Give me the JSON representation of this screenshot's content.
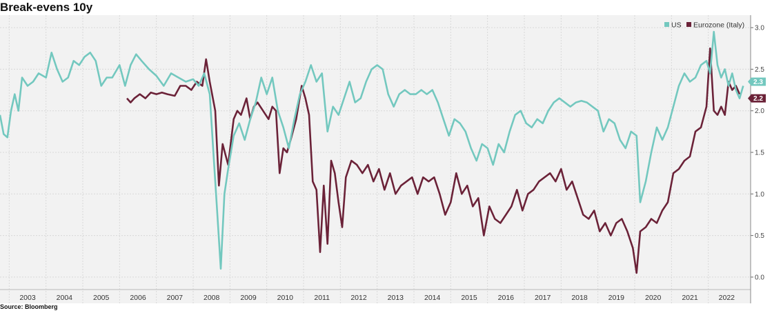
{
  "header": {
    "title": "Break-evens 10y"
  },
  "footer": {
    "source": "Source: Bloomberg"
  },
  "colors": {
    "us": "#73C8BF",
    "italy": "#6B2238",
    "plot_bg": "#F2F2F2",
    "grid": "#D8D8D8"
  },
  "chart_data": {
    "type": "line",
    "title": "Break-evens 10y",
    "xlabel": "",
    "ylabel": "",
    "ylim": [
      -0.15,
      3.15
    ],
    "xlim": [
      2002.75,
      2023.15
    ],
    "yticks": [
      0.0,
      0.5,
      1.0,
      1.5,
      2.0,
      2.5,
      3.0
    ],
    "ytick_labels": [
      "0.0",
      "0.5",
      "1.0",
      "1.5",
      "2.0",
      "2.5",
      "3.0"
    ],
    "xtick_labels": [
      "2003",
      "2004",
      "2005",
      "2006",
      "2007",
      "2008",
      "2009",
      "2010",
      "2011",
      "2012",
      "2013",
      "2014",
      "2015",
      "2016",
      "2017",
      "2018",
      "2019",
      "2020",
      "2021",
      "2022"
    ],
    "grid": true,
    "legend": "top-right",
    "end_labels": [
      "2.3",
      "2.2"
    ],
    "series": [
      {
        "name": "US",
        "color": "#73C8BF",
        "last_value_label": "2.3",
        "x": [
          2002.75,
          2002.85,
          2002.95,
          2003.05,
          2003.15,
          2003.25,
          2003.35,
          2003.5,
          2003.65,
          2003.8,
          2004.0,
          2004.15,
          2004.3,
          2004.45,
          2004.6,
          2004.75,
          2004.9,
          2005.05,
          2005.2,
          2005.35,
          2005.5,
          2005.65,
          2005.8,
          2006.0,
          2006.15,
          2006.3,
          2006.45,
          2006.6,
          2006.8,
          2007.0,
          2007.2,
          2007.4,
          2007.6,
          2007.8,
          2008.0,
          2008.15,
          2008.3,
          2008.45,
          2008.55,
          2008.65,
          2008.75,
          2008.85,
          2008.95,
          2009.1,
          2009.25,
          2009.4,
          2009.55,
          2009.7,
          2009.85,
          2010.0,
          2010.15,
          2010.3,
          2010.45,
          2010.6,
          2010.75,
          2010.9,
          2011.05,
          2011.2,
          2011.35,
          2011.5,
          2011.65,
          2011.8,
          2011.95,
          2012.1,
          2012.25,
          2012.4,
          2012.55,
          2012.7,
          2012.85,
          2013.0,
          2013.15,
          2013.3,
          2013.45,
          2013.6,
          2013.75,
          2013.9,
          2014.05,
          2014.2,
          2014.35,
          2014.5,
          2014.65,
          2014.8,
          2014.95,
          2015.1,
          2015.25,
          2015.4,
          2015.55,
          2015.7,
          2015.85,
          2016.0,
          2016.15,
          2016.3,
          2016.45,
          2016.6,
          2016.75,
          2016.9,
          2017.05,
          2017.2,
          2017.35,
          2017.5,
          2017.65,
          2017.8,
          2017.95,
          2018.1,
          2018.25,
          2018.4,
          2018.55,
          2018.7,
          2018.85,
          2019.0,
          2019.15,
          2019.3,
          2019.45,
          2019.6,
          2019.75,
          2019.9,
          2020.05,
          2020.15,
          2020.3,
          2020.45,
          2020.6,
          2020.75,
          2020.9,
          2021.05,
          2021.2,
          2021.35,
          2021.5,
          2021.65,
          2021.8,
          2021.95,
          2022.05,
          2022.15,
          2022.25,
          2022.35,
          2022.45,
          2022.55,
          2022.65,
          2022.75,
          2022.85,
          2022.95
        ],
        "y": [
          1.95,
          1.72,
          1.68,
          2.0,
          2.2,
          2.0,
          2.4,
          2.3,
          2.35,
          2.45,
          2.4,
          2.7,
          2.5,
          2.35,
          2.4,
          2.6,
          2.55,
          2.65,
          2.7,
          2.6,
          2.3,
          2.4,
          2.4,
          2.55,
          2.3,
          2.55,
          2.68,
          2.6,
          2.5,
          2.42,
          2.3,
          2.45,
          2.4,
          2.35,
          2.38,
          2.3,
          2.45,
          2.2,
          1.5,
          0.8,
          0.1,
          1.0,
          1.3,
          1.7,
          1.85,
          1.65,
          1.9,
          2.1,
          2.4,
          2.2,
          2.4,
          2.0,
          1.8,
          1.55,
          1.9,
          2.2,
          2.35,
          2.55,
          2.35,
          2.45,
          1.75,
          2.05,
          1.95,
          2.15,
          2.35,
          2.1,
          2.15,
          2.35,
          2.5,
          2.55,
          2.5,
          2.2,
          2.05,
          2.2,
          2.25,
          2.2,
          2.2,
          2.25,
          2.2,
          2.25,
          2.1,
          1.9,
          1.7,
          1.9,
          1.85,
          1.75,
          1.55,
          1.4,
          1.6,
          1.55,
          1.35,
          1.6,
          1.5,
          1.75,
          1.95,
          2.0,
          1.85,
          1.8,
          1.9,
          1.85,
          2.0,
          2.1,
          2.15,
          2.1,
          2.05,
          2.1,
          2.12,
          2.1,
          2.05,
          2.0,
          1.75,
          1.9,
          1.85,
          1.65,
          1.55,
          1.75,
          1.7,
          0.9,
          1.15,
          1.5,
          1.8,
          1.65,
          1.8,
          2.05,
          2.3,
          2.45,
          2.35,
          2.4,
          2.55,
          2.6,
          2.45,
          2.95,
          2.55,
          2.4,
          2.5,
          2.3,
          2.45,
          2.25,
          2.15,
          2.3
        ]
      },
      {
        "name": "Eurozone (Italy)",
        "color": "#6B2238",
        "last_value_label": "2.2",
        "x": [
          2006.2,
          2006.3,
          2006.4,
          2006.55,
          2006.7,
          2006.85,
          2007.0,
          2007.15,
          2007.3,
          2007.5,
          2007.65,
          2007.8,
          2007.95,
          2008.1,
          2008.25,
          2008.35,
          2008.45,
          2008.6,
          2008.7,
          2008.8,
          2008.95,
          2009.1,
          2009.2,
          2009.3,
          2009.45,
          2009.55,
          2009.65,
          2009.75,
          2009.9,
          2010.05,
          2010.15,
          2010.25,
          2010.35,
          2010.45,
          2010.55,
          2010.65,
          2010.8,
          2010.95,
          2011.05,
          2011.15,
          2011.25,
          2011.35,
          2011.45,
          2011.55,
          2011.65,
          2011.75,
          2011.85,
          2011.95,
          2012.05,
          2012.15,
          2012.3,
          2012.45,
          2012.6,
          2012.75,
          2012.9,
          2013.05,
          2013.2,
          2013.35,
          2013.5,
          2013.65,
          2013.8,
          2013.95,
          2014.1,
          2014.25,
          2014.4,
          2014.55,
          2014.7,
          2014.85,
          2015.0,
          2015.15,
          2015.3,
          2015.45,
          2015.6,
          2015.75,
          2015.9,
          2016.05,
          2016.2,
          2016.35,
          2016.5,
          2016.65,
          2016.8,
          2016.95,
          2017.1,
          2017.25,
          2017.4,
          2017.55,
          2017.7,
          2017.85,
          2018.0,
          2018.15,
          2018.3,
          2018.45,
          2018.6,
          2018.75,
          2018.9,
          2019.05,
          2019.2,
          2019.35,
          2019.5,
          2019.65,
          2019.8,
          2019.95,
          2020.05,
          2020.15,
          2020.3,
          2020.45,
          2020.6,
          2020.75,
          2020.9,
          2021.05,
          2021.2,
          2021.35,
          2021.5,
          2021.65,
          2021.8,
          2021.95,
          2022.05,
          2022.15,
          2022.25,
          2022.35,
          2022.45,
          2022.55,
          2022.65,
          2022.75,
          2022.85
        ],
        "y": [
          2.15,
          2.1,
          2.15,
          2.2,
          2.15,
          2.22,
          2.2,
          2.22,
          2.2,
          2.18,
          2.3,
          2.3,
          2.25,
          2.35,
          2.3,
          2.62,
          2.35,
          2.0,
          1.1,
          1.6,
          1.35,
          1.9,
          2.0,
          1.95,
          2.15,
          1.9,
          2.05,
          2.1,
          2.0,
          1.9,
          2.05,
          2.0,
          1.25,
          1.55,
          1.5,
          1.65,
          1.9,
          2.3,
          2.15,
          1.95,
          1.15,
          1.05,
          0.3,
          1.1,
          0.4,
          1.4,
          1.25,
          0.9,
          0.6,
          1.2,
          1.4,
          1.35,
          1.25,
          1.35,
          1.15,
          1.3,
          1.05,
          1.25,
          1.0,
          1.1,
          1.15,
          1.2,
          1.0,
          1.2,
          1.15,
          1.2,
          1.0,
          0.75,
          0.9,
          1.25,
          1.0,
          1.1,
          0.85,
          0.95,
          0.5,
          0.85,
          0.7,
          0.65,
          0.75,
          0.85,
          1.05,
          0.8,
          1.0,
          1.05,
          1.15,
          1.2,
          1.25,
          1.15,
          1.3,
          1.05,
          1.15,
          0.95,
          0.75,
          0.7,
          0.8,
          0.55,
          0.65,
          0.5,
          0.65,
          0.7,
          0.55,
          0.35,
          0.05,
          0.55,
          0.6,
          0.7,
          0.65,
          0.8,
          0.9,
          1.25,
          1.3,
          1.4,
          1.45,
          1.75,
          1.8,
          2.05,
          2.75,
          2.0,
          1.95,
          2.05,
          1.95,
          2.35,
          2.25,
          2.3,
          2.2
        ]
      }
    ]
  }
}
